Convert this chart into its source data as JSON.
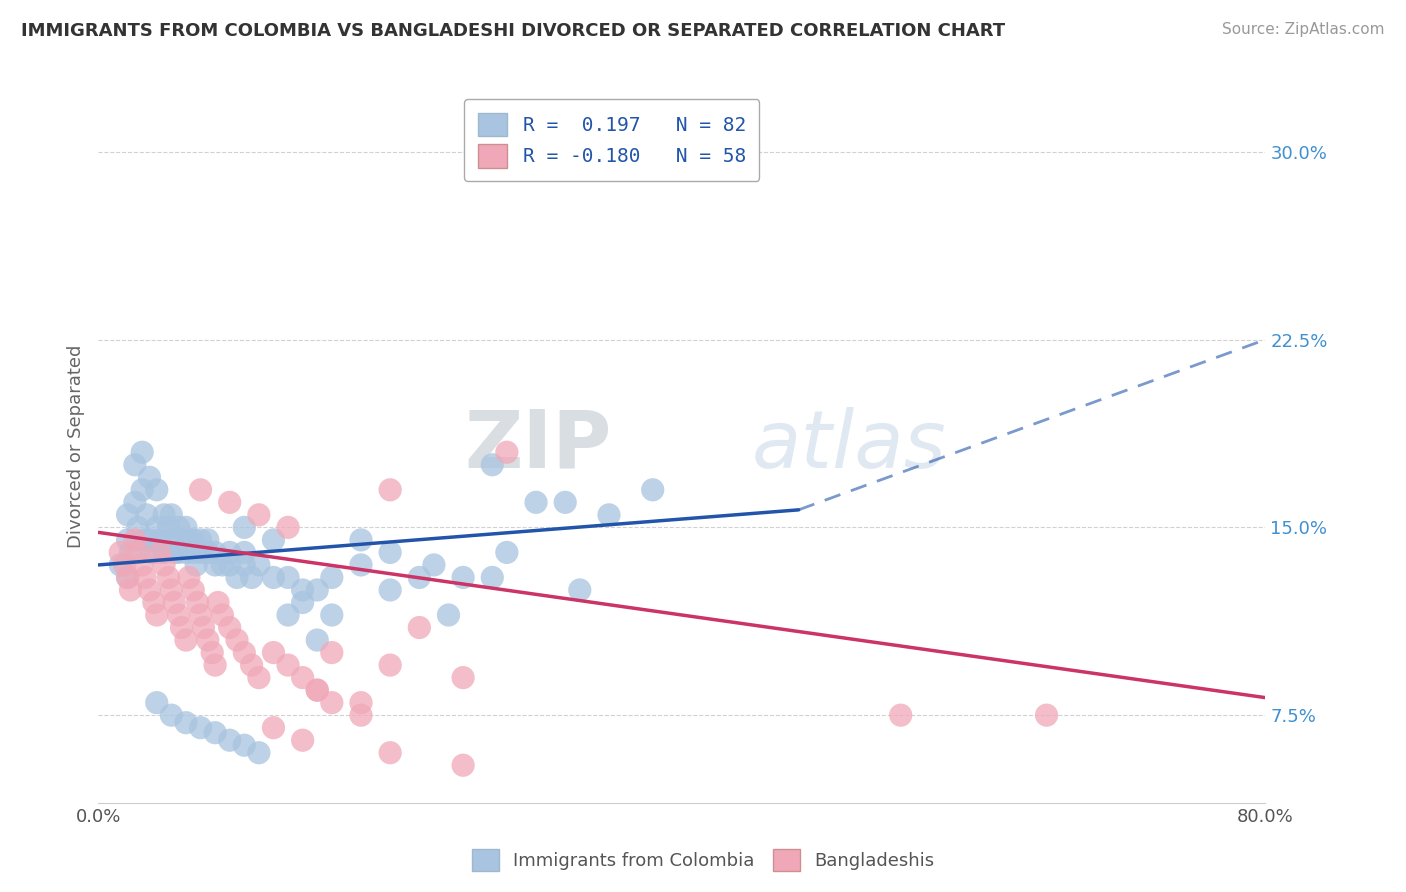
{
  "title": "IMMIGRANTS FROM COLOMBIA VS BANGLADESHI DIVORCED OR SEPARATED CORRELATION CHART",
  "source": "Source: ZipAtlas.com",
  "ylabel": "Divorced or Separated",
  "xlim": [
    0.0,
    0.8
  ],
  "ylim": [
    0.04,
    0.325
  ],
  "yticks": [
    0.075,
    0.15,
    0.225,
    0.3
  ],
  "ytick_labels": [
    "7.5%",
    "15.0%",
    "22.5%",
    "30.0%"
  ],
  "color_blue": "#a8c4e0",
  "color_pink": "#f0a8b8",
  "line_color_blue": "#2255aa",
  "line_color_pink": "#cc3366",
  "blue_scatter_x": [
    0.015,
    0.02,
    0.02,
    0.02,
    0.022,
    0.025,
    0.025,
    0.027,
    0.03,
    0.03,
    0.032,
    0.033,
    0.035,
    0.035,
    0.037,
    0.04,
    0.04,
    0.042,
    0.045,
    0.045,
    0.048,
    0.05,
    0.05,
    0.052,
    0.055,
    0.055,
    0.057,
    0.06,
    0.06,
    0.062,
    0.065,
    0.065,
    0.067,
    0.07,
    0.07,
    0.075,
    0.075,
    0.08,
    0.08,
    0.085,
    0.09,
    0.09,
    0.095,
    0.1,
    0.1,
    0.105,
    0.11,
    0.12,
    0.13,
    0.14,
    0.15,
    0.16,
    0.18,
    0.2,
    0.22,
    0.25,
    0.28,
    0.3,
    0.35,
    0.38,
    0.04,
    0.05,
    0.06,
    0.07,
    0.08,
    0.09,
    0.1,
    0.11,
    0.13,
    0.15,
    0.18,
    0.2,
    0.23,
    0.27,
    0.32,
    0.14,
    0.16,
    0.24,
    0.27,
    0.33,
    0.1,
    0.12
  ],
  "blue_scatter_y": [
    0.135,
    0.13,
    0.145,
    0.155,
    0.14,
    0.16,
    0.175,
    0.15,
    0.165,
    0.18,
    0.145,
    0.155,
    0.145,
    0.17,
    0.14,
    0.15,
    0.165,
    0.145,
    0.155,
    0.14,
    0.15,
    0.145,
    0.155,
    0.14,
    0.15,
    0.14,
    0.145,
    0.14,
    0.15,
    0.145,
    0.14,
    0.145,
    0.135,
    0.14,
    0.145,
    0.14,
    0.145,
    0.135,
    0.14,
    0.135,
    0.135,
    0.14,
    0.13,
    0.135,
    0.14,
    0.13,
    0.135,
    0.13,
    0.13,
    0.125,
    0.125,
    0.13,
    0.135,
    0.125,
    0.13,
    0.13,
    0.14,
    0.16,
    0.155,
    0.165,
    0.08,
    0.075,
    0.072,
    0.07,
    0.068,
    0.065,
    0.063,
    0.06,
    0.115,
    0.105,
    0.145,
    0.14,
    0.135,
    0.175,
    0.16,
    0.12,
    0.115,
    0.115,
    0.13,
    0.125,
    0.15,
    0.145
  ],
  "pink_scatter_x": [
    0.015,
    0.018,
    0.02,
    0.022,
    0.025,
    0.027,
    0.03,
    0.032,
    0.035,
    0.038,
    0.04,
    0.042,
    0.045,
    0.048,
    0.05,
    0.052,
    0.055,
    0.057,
    0.06,
    0.062,
    0.065,
    0.068,
    0.07,
    0.072,
    0.075,
    0.078,
    0.08,
    0.082,
    0.085,
    0.09,
    0.095,
    0.1,
    0.105,
    0.11,
    0.12,
    0.13,
    0.14,
    0.15,
    0.16,
    0.18,
    0.2,
    0.22,
    0.28,
    0.55,
    0.07,
    0.09,
    0.11,
    0.13,
    0.16,
    0.2,
    0.25,
    0.15,
    0.18,
    0.12,
    0.14,
    0.2,
    0.25,
    0.65
  ],
  "pink_scatter_y": [
    0.14,
    0.135,
    0.13,
    0.125,
    0.145,
    0.14,
    0.135,
    0.13,
    0.125,
    0.12,
    0.115,
    0.14,
    0.135,
    0.13,
    0.125,
    0.12,
    0.115,
    0.11,
    0.105,
    0.13,
    0.125,
    0.12,
    0.115,
    0.11,
    0.105,
    0.1,
    0.095,
    0.12,
    0.115,
    0.11,
    0.105,
    0.1,
    0.095,
    0.09,
    0.1,
    0.095,
    0.09,
    0.085,
    0.08,
    0.075,
    0.165,
    0.11,
    0.18,
    0.075,
    0.165,
    0.16,
    0.155,
    0.15,
    0.1,
    0.095,
    0.09,
    0.085,
    0.08,
    0.07,
    0.065,
    0.06,
    0.055,
    0.075
  ],
  "watermark_zip": "ZIP",
  "watermark_atlas": "atlas",
  "background_color": "#ffffff",
  "grid_color": "#cccccc",
  "blue_line_start_x": 0.0,
  "blue_line_end_x": 0.48,
  "blue_line_dashed_start_x": 0.48,
  "blue_line_dashed_end_x": 0.8,
  "blue_line_start_y": 0.135,
  "blue_line_end_y": 0.157,
  "blue_line_dashed_end_y": 0.225,
  "pink_line_start_x": 0.0,
  "pink_line_end_x": 0.8,
  "pink_line_start_y": 0.148,
  "pink_line_end_y": 0.082
}
